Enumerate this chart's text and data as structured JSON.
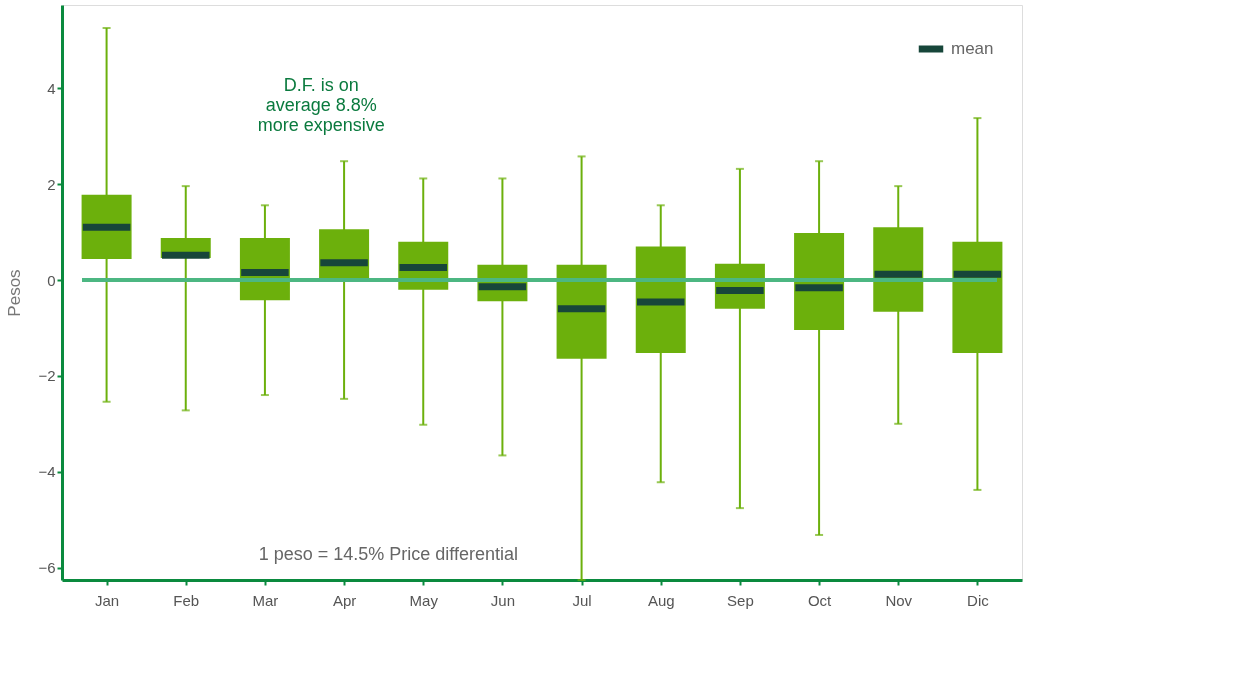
{
  "chart_data": {
    "type": "box",
    "ylabel": "Pesos",
    "legend_title": "mean",
    "categories": [
      "Jan",
      "Feb",
      "Mar",
      "Apr",
      "May",
      "Jun",
      "Jul",
      "Aug",
      "Sep",
      "Oct",
      "Nov",
      "Dic"
    ],
    "ylim": [
      -6.26,
      5.74
    ],
    "yticks": [
      -6,
      -4,
      -2,
      0,
      2,
      4
    ],
    "grid": false,
    "series": [
      {
        "type": "box",
        "color": "#6cb00c",
        "boxes": [
          {
            "low": -2.54,
            "q1": 0.44,
            "q3": 1.78,
            "high": 5.26,
            "mean": 1.1
          },
          {
            "low": -2.72,
            "q1": 0.46,
            "q3": 0.88,
            "high": 1.96,
            "mean": 0.52
          },
          {
            "low": -2.4,
            "q1": -0.42,
            "q3": 0.88,
            "high": 1.56,
            "mean": 0.16
          },
          {
            "low": -2.48,
            "q1": 0.0,
            "q3": 1.06,
            "high": 2.48,
            "mean": 0.36
          },
          {
            "low": -3.02,
            "q1": -0.2,
            "q3": 0.8,
            "high": 2.12,
            "mean": 0.26
          },
          {
            "low": -3.66,
            "q1": -0.44,
            "q3": 0.32,
            "high": 2.12,
            "mean": -0.14
          },
          {
            "low": -6.26,
            "q1": -1.64,
            "q3": 0.32,
            "high": 2.58,
            "mean": -0.6
          },
          {
            "low": -4.22,
            "q1": -1.52,
            "q3": 0.7,
            "high": 1.56,
            "mean": -0.46
          },
          {
            "low": -4.76,
            "q1": -0.6,
            "q3": 0.34,
            "high": 2.32,
            "mean": -0.22
          },
          {
            "low": -5.32,
            "q1": -1.04,
            "q3": 0.98,
            "high": 2.48,
            "mean": -0.16
          },
          {
            "low": -3.0,
            "q1": -0.66,
            "q3": 1.1,
            "high": 1.96,
            "mean": 0.12
          },
          {
            "low": -4.38,
            "q1": -1.52,
            "q3": 0.8,
            "high": 3.38,
            "mean": 0.12
          }
        ]
      }
    ],
    "ref_lines": [
      {
        "axis": "y",
        "value": 0,
        "color": "#4cb782"
      }
    ],
    "annotations": [
      "D.F. is on\naverage 8.8%\nmore expensive",
      "1 peso = 14.5% Price differential"
    ]
  }
}
